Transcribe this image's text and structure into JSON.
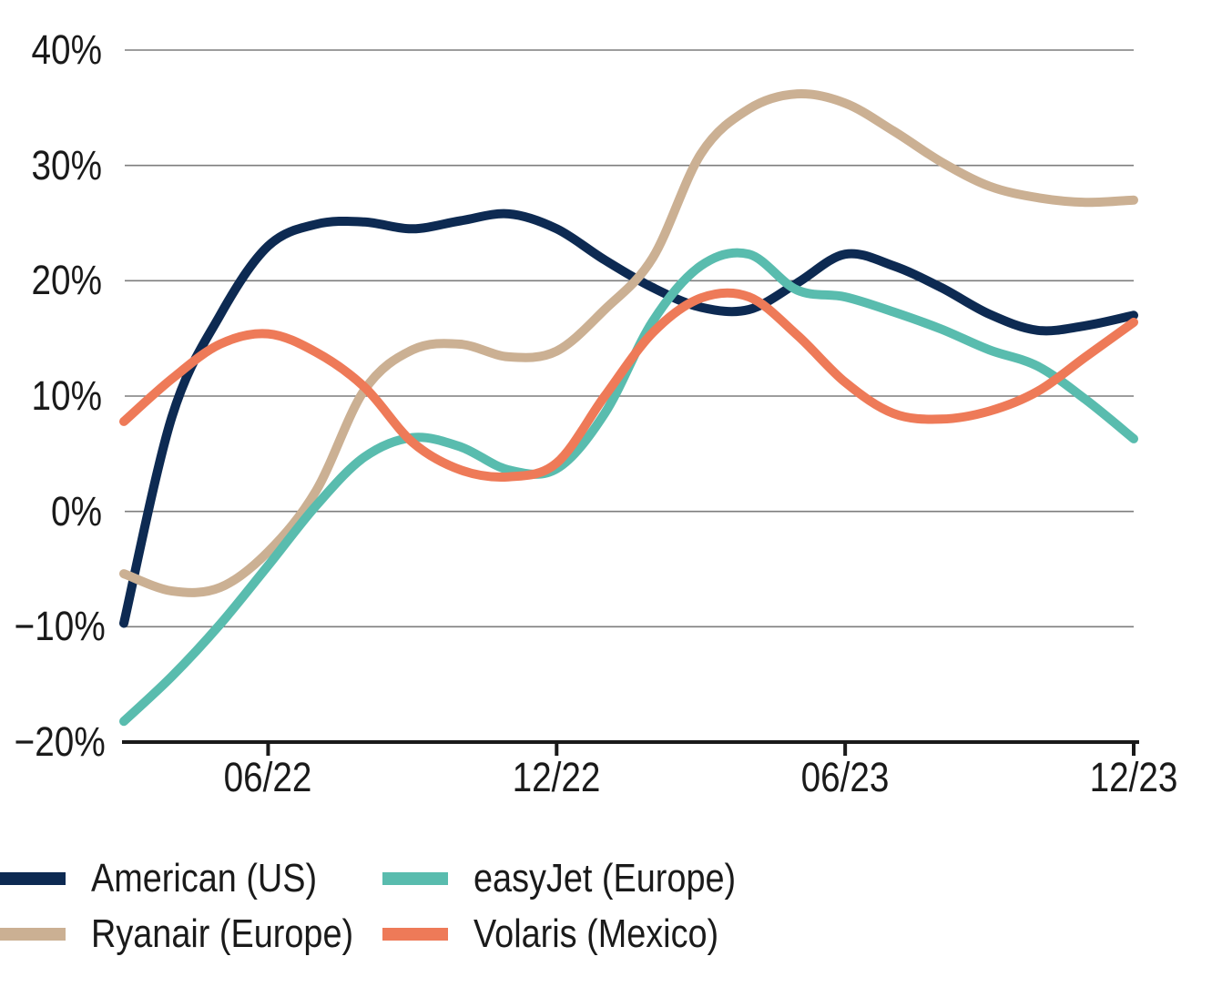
{
  "chart_data": {
    "type": "line",
    "title": "",
    "xlabel": "",
    "ylabel": "",
    "ylim": [
      -20,
      40
    ],
    "grid": "horizontal-gridlines",
    "legend_position": "bottom-left",
    "y_ticks": [
      {
        "value": 40,
        "label": "40%"
      },
      {
        "value": 30,
        "label": "30%"
      },
      {
        "value": 20,
        "label": "20%"
      },
      {
        "value": 10,
        "label": "10%"
      },
      {
        "value": 0,
        "label": "0%"
      },
      {
        "value": -10,
        "label": "−10%"
      },
      {
        "value": -20,
        "label": "−20%"
      }
    ],
    "x": [
      "03/22",
      "04/22",
      "05/22",
      "06/22",
      "07/22",
      "08/22",
      "09/22",
      "10/22",
      "11/22",
      "12/22",
      "01/23",
      "02/23",
      "03/23",
      "04/23",
      "05/23",
      "06/23",
      "07/23",
      "08/23",
      "09/23",
      "10/23",
      "11/23",
      "12/23"
    ],
    "x_tick_indices": [
      3,
      9,
      15,
      21
    ],
    "x_tick_labels": [
      "06/22",
      "12/22",
      "06/23",
      "12/23"
    ],
    "series": [
      {
        "name": "American (US)",
        "color": "#0d2a52",
        "values": [
          -9.7,
          8.2,
          17.0,
          23.0,
          24.9,
          25.1,
          24.5,
          25.2,
          25.8,
          24.5,
          21.8,
          19.4,
          17.7,
          17.5,
          19.8,
          22.3,
          21.3,
          19.4,
          17.1,
          15.7,
          16.1,
          17.0
        ]
      },
      {
        "name": "Ryanair (Europe)",
        "color": "#cbb093",
        "values": [
          -5.4,
          -6.9,
          -6.6,
          -3.5,
          1.8,
          10.5,
          14.0,
          14.5,
          13.4,
          13.9,
          17.5,
          22.0,
          31.0,
          34.9,
          36.2,
          35.4,
          33.0,
          30.3,
          28.2,
          27.2,
          26.8,
          27.0
        ]
      },
      {
        "name": "easyJet (Europe)",
        "color": "#59bcae",
        "values": [
          -18.2,
          -14.3,
          -9.8,
          -4.7,
          0.5,
          4.7,
          6.4,
          5.6,
          3.6,
          3.7,
          8.5,
          16.5,
          21.3,
          22.3,
          19.2,
          18.6,
          17.3,
          15.8,
          14.0,
          12.6,
          9.7,
          6.3
        ]
      },
      {
        "name": "Volaris (Mexico)",
        "color": "#ee7a58",
        "values": [
          7.8,
          11.5,
          14.5,
          15.4,
          13.8,
          10.8,
          6.0,
          3.6,
          3.0,
          4.2,
          10.0,
          15.5,
          18.5,
          18.6,
          15.3,
          11.2,
          8.5,
          8.0,
          8.7,
          10.4,
          13.4,
          16.4
        ]
      }
    ],
    "legend_items": [
      {
        "label": "American (US)",
        "color": "#0d2a52",
        "row": 0,
        "col": 0
      },
      {
        "label": "easyJet (Europe)",
        "color": "#59bcae",
        "row": 0,
        "col": 1
      },
      {
        "label": "Ryanair (Europe)",
        "color": "#cbb093",
        "row": 1,
        "col": 0
      },
      {
        "label": "Volaris (Mexico)",
        "color": "#ee7a58",
        "row": 1,
        "col": 1
      }
    ],
    "colors": {
      "gridline": "#7d7d7d",
      "axis": "#1a1a1a",
      "text": "#1a1a1a",
      "background": "#ffffff"
    }
  }
}
